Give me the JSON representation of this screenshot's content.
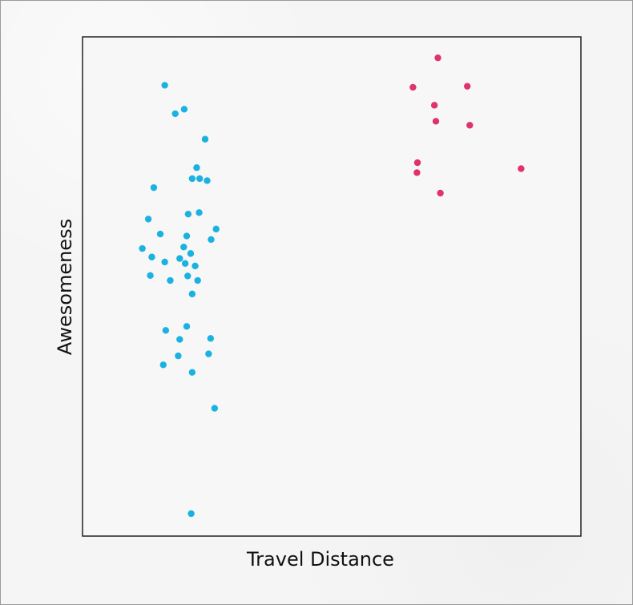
{
  "chart_data": {
    "type": "scatter",
    "title": "",
    "xlabel": "Travel Distance",
    "ylabel": "Awesomeness",
    "xlim": [
      0,
      100
    ],
    "ylim": [
      0,
      100
    ],
    "grid": false,
    "legend": "none",
    "series": [
      {
        "color": "#1AB2E0",
        "points": [
          [
            16.5,
            90.3
          ],
          [
            18.6,
            84.6
          ],
          [
            20.4,
            85.5
          ],
          [
            24.6,
            79.5
          ],
          [
            22.9,
            73.8
          ],
          [
            22.0,
            71.6
          ],
          [
            23.5,
            71.6
          ],
          [
            25.0,
            71.2
          ],
          [
            14.3,
            69.8
          ],
          [
            21.2,
            64.5
          ],
          [
            23.4,
            64.8
          ],
          [
            13.2,
            63.5
          ],
          [
            26.8,
            61.5
          ],
          [
            15.6,
            60.5
          ],
          [
            20.9,
            60.1
          ],
          [
            25.8,
            59.4
          ],
          [
            20.3,
            57.9
          ],
          [
            12.0,
            57.6
          ],
          [
            13.9,
            55.9
          ],
          [
            21.7,
            56.6
          ],
          [
            19.5,
            55.6
          ],
          [
            16.5,
            54.9
          ],
          [
            20.6,
            54.6
          ],
          [
            22.6,
            54.1
          ],
          [
            13.6,
            52.2
          ],
          [
            21.1,
            52.1
          ],
          [
            17.6,
            51.2
          ],
          [
            23.1,
            51.2
          ],
          [
            22.0,
            48.5
          ],
          [
            20.9,
            42.0
          ],
          [
            16.7,
            41.2
          ],
          [
            25.7,
            39.6
          ],
          [
            19.5,
            39.4
          ],
          [
            25.3,
            36.5
          ],
          [
            19.2,
            36.1
          ],
          [
            16.2,
            34.3
          ],
          [
            22.0,
            32.8
          ],
          [
            26.5,
            25.6
          ],
          [
            21.8,
            4.5
          ]
        ]
      },
      {
        "color": "#E0336A",
        "points": [
          [
            71.3,
            95.8
          ],
          [
            66.3,
            89.9
          ],
          [
            77.2,
            90.1
          ],
          [
            70.6,
            86.3
          ],
          [
            70.9,
            83.1
          ],
          [
            77.7,
            82.3
          ],
          [
            67.2,
            74.8
          ],
          [
            67.1,
            72.8
          ],
          [
            88.0,
            73.6
          ],
          [
            71.8,
            68.7
          ]
        ]
      }
    ]
  }
}
